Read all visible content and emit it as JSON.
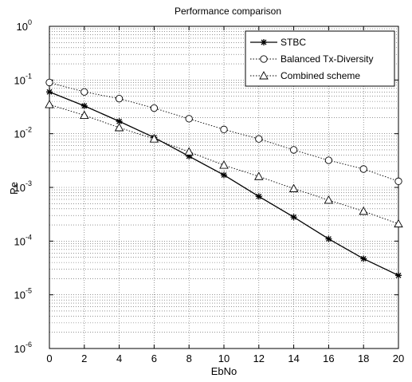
{
  "chart_data": {
    "type": "line",
    "title": "Performance comparison",
    "xlabel": "EbNo",
    "ylabel": "Pe",
    "xlim": [
      0,
      20
    ],
    "ylim": [
      1e-06,
      1
    ],
    "yscale": "log",
    "grid": true,
    "legend_position": "top-right",
    "x_ticks": [
      "0",
      "2",
      "4",
      "6",
      "8",
      "10",
      "12",
      "14",
      "16",
      "18",
      "20"
    ],
    "y_ticks": [
      {
        "base": "10",
        "exp": "0"
      },
      {
        "base": "10",
        "exp": "-1"
      },
      {
        "base": "10",
        "exp": "-2"
      },
      {
        "base": "10",
        "exp": "-3"
      },
      {
        "base": "10",
        "exp": "-4"
      },
      {
        "base": "10",
        "exp": "-5"
      },
      {
        "base": "10",
        "exp": "-6"
      }
    ],
    "x": [
      0,
      2,
      4,
      6,
      8,
      10,
      12,
      14,
      16,
      18,
      20
    ],
    "series": [
      {
        "name": "STBC",
        "marker": "star",
        "line": "solid",
        "x": [
          0,
          2,
          4,
          6,
          8,
          10,
          12,
          14,
          16,
          18,
          20
        ],
        "values": [
          0.06,
          0.033,
          0.017,
          0.0085,
          0.0038,
          0.0017,
          0.00068,
          0.00028,
          0.00011,
          4.7e-05,
          2.3e-05
        ]
      },
      {
        "name": "Balanced Tx-Diversity",
        "marker": "circle",
        "line": "dotted",
        "x": [
          0,
          2,
          4,
          6,
          8,
          10,
          12,
          14,
          16,
          18,
          20
        ],
        "values": [
          0.09,
          0.06,
          0.045,
          0.03,
          0.019,
          0.012,
          0.008,
          0.005,
          0.0032,
          0.0022,
          0.0013
        ]
      },
      {
        "name": "Combined scheme",
        "marker": "triangle",
        "line": "dotted",
        "x": [
          0,
          2,
          4,
          6,
          8,
          10,
          12,
          14,
          16,
          18,
          20
        ],
        "values": [
          0.035,
          0.022,
          0.013,
          0.008,
          0.0046,
          0.0026,
          0.0016,
          0.00095,
          0.00058,
          0.00036,
          0.00021
        ]
      }
    ]
  },
  "colors": {
    "line": "#000000",
    "grid": "#555555",
    "background": "#ffffff"
  }
}
